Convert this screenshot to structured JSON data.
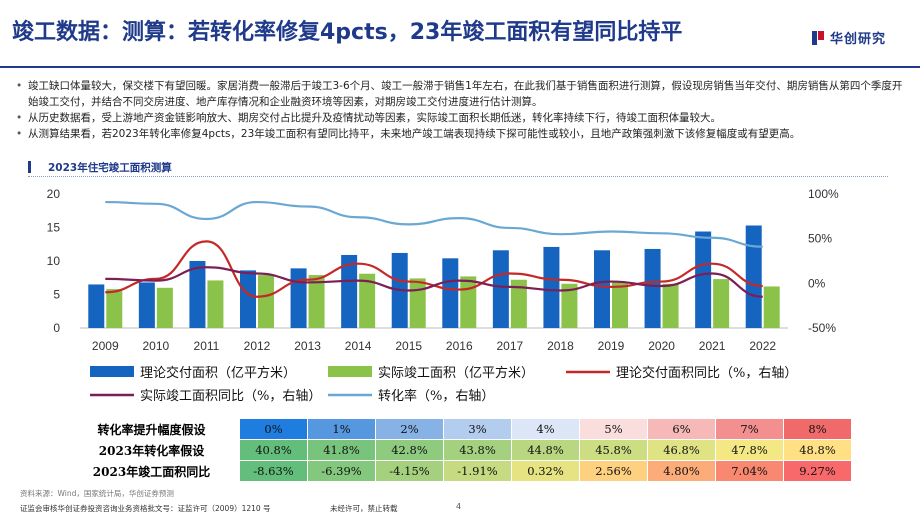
{
  "slide": {
    "title": "竣工数据：测算：若转化率修复4pcts，23年竣工面积有望同比持平",
    "logo_text": "华创研究",
    "bullets": [
      "竣工缺口体量较大，保交楼下有望回暖。家居消费一般滞后于竣工3-6个月、竣工一般滞于销售1年左右，在此我们基于销售面积进行测算，假设现房销售当年交付、期房销售从第四个季度开始竣工交付，并结合不同交房进度、地产库存情况和企业融资环境等因素，对期房竣工交付进度进行估计测算。",
      "从历史数据看，受上游地产资金链影响放大、期房交付占比提升及疫情扰动等因素，实际竣工面积长期低迷，转化率持续下行，待竣工面积体量较大。",
      "从测算结果看，若2023年转化率修复4pcts，23年竣工面积有望同比持平，未来地产竣工端表现持续下探可能性或较小，且地产政策强刺激下该修复幅度或有望更高。"
    ],
    "chart_heading": "2023年住宅竣工面积测算",
    "source": "资料来源：Wind，国家统计局，华创证券预测",
    "footer_left": "证监会审核华创证券投资咨询业务资格批文号：证监许可（2009）1210 号",
    "footer_mid": "未经许可，禁止转载",
    "page_number": "4"
  },
  "colors": {
    "bar_theory": "#1565c0",
    "bar_actual": "#8bc34a",
    "line_theory_yoy": "#c62828",
    "line_actual_yoy": "#7b1f55",
    "line_conversion": "#6aa8d4",
    "title": "#1f3a8a"
  },
  "chart_data": {
    "type": "bar",
    "categories": [
      "2009",
      "2010",
      "2011",
      "2012",
      "2013",
      "2014",
      "2015",
      "2016",
      "2017",
      "2018",
      "2019",
      "2020",
      "2021",
      "2022"
    ],
    "ylim_left": [
      0,
      20
    ],
    "yticks_left": [
      "0",
      "5",
      "10",
      "15",
      "20"
    ],
    "ylim_right": [
      -50,
      100
    ],
    "yticks_right": [
      "-50%",
      "0%",
      "50%",
      "100%"
    ],
    "series": [
      {
        "name": "理论交付面积（亿平方米）",
        "kind": "bar",
        "axis": "left",
        "values": [
          6.5,
          6.8,
          10.0,
          8.6,
          8.9,
          10.9,
          11.2,
          10.4,
          11.6,
          12.1,
          11.6,
          11.8,
          14.4,
          15.3
        ]
      },
      {
        "name": "实际竣工面积（亿平方米）",
        "kind": "bar",
        "axis": "left",
        "values": [
          5.8,
          6.0,
          7.1,
          7.9,
          7.9,
          8.1,
          7.4,
          7.7,
          7.2,
          6.6,
          6.8,
          6.6,
          7.3,
          6.2
        ]
      },
      {
        "name": "理论交付面积同比（%，右轴）",
        "kind": "line",
        "axis": "right",
        "values": [
          -10,
          5,
          47,
          -15,
          4,
          22,
          2,
          -7,
          11,
          4,
          -4,
          2,
          22,
          -3
        ]
      },
      {
        "name": "实际竣工面积同比（%，右轴）",
        "kind": "line",
        "axis": "right",
        "values": [
          5,
          3,
          18,
          11,
          1,
          3,
          -8,
          3,
          -4,
          -8,
          2,
          -3,
          11,
          -15
        ]
      },
      {
        "name": "转化率（%，右轴）",
        "kind": "line",
        "axis": "right",
        "values": [
          91,
          89,
          72,
          91,
          86,
          74,
          66,
          73,
          62,
          55,
          58,
          56,
          51,
          41
        ]
      }
    ]
  },
  "sensitivity": {
    "rows": [
      {
        "label": "转化率提升幅度假设",
        "values": [
          "0%",
          "1%",
          "2%",
          "3%",
          "4%",
          "5%",
          "6%",
          "7%",
          "8%"
        ],
        "colors": [
          "#1f7de0",
          "#5598e0",
          "#86b2e6",
          "#b3cdee",
          "#dde6f6",
          "#fadede",
          "#f7b8b8",
          "#f48f8f",
          "#f06a6a"
        ]
      },
      {
        "label": "2023年转化率假设",
        "values": [
          "40.8%",
          "41.8%",
          "42.8%",
          "43.8%",
          "44.8%",
          "45.8%",
          "46.8%",
          "47.8%",
          "48.8%"
        ],
        "colors": [
          "#63be7b",
          "#78c47d",
          "#8ecb7e",
          "#a3d180",
          "#b9d781",
          "#ccdd82",
          "#e0e383",
          "#f3e884",
          "#ffe084"
        ]
      },
      {
        "label": "2023年竣工面积同比",
        "values": [
          "-8.63%",
          "-6.39%",
          "-4.15%",
          "-1.91%",
          "0.32%",
          "2.56%",
          "4.80%",
          "7.04%",
          "9.27%"
        ],
        "colors": [
          "#63be7b",
          "#84c87d",
          "#a5d17f",
          "#c6da81",
          "#e6e382",
          "#fdd17f",
          "#fbac78",
          "#f98870",
          "#f8696b"
        ]
      }
    ]
  }
}
